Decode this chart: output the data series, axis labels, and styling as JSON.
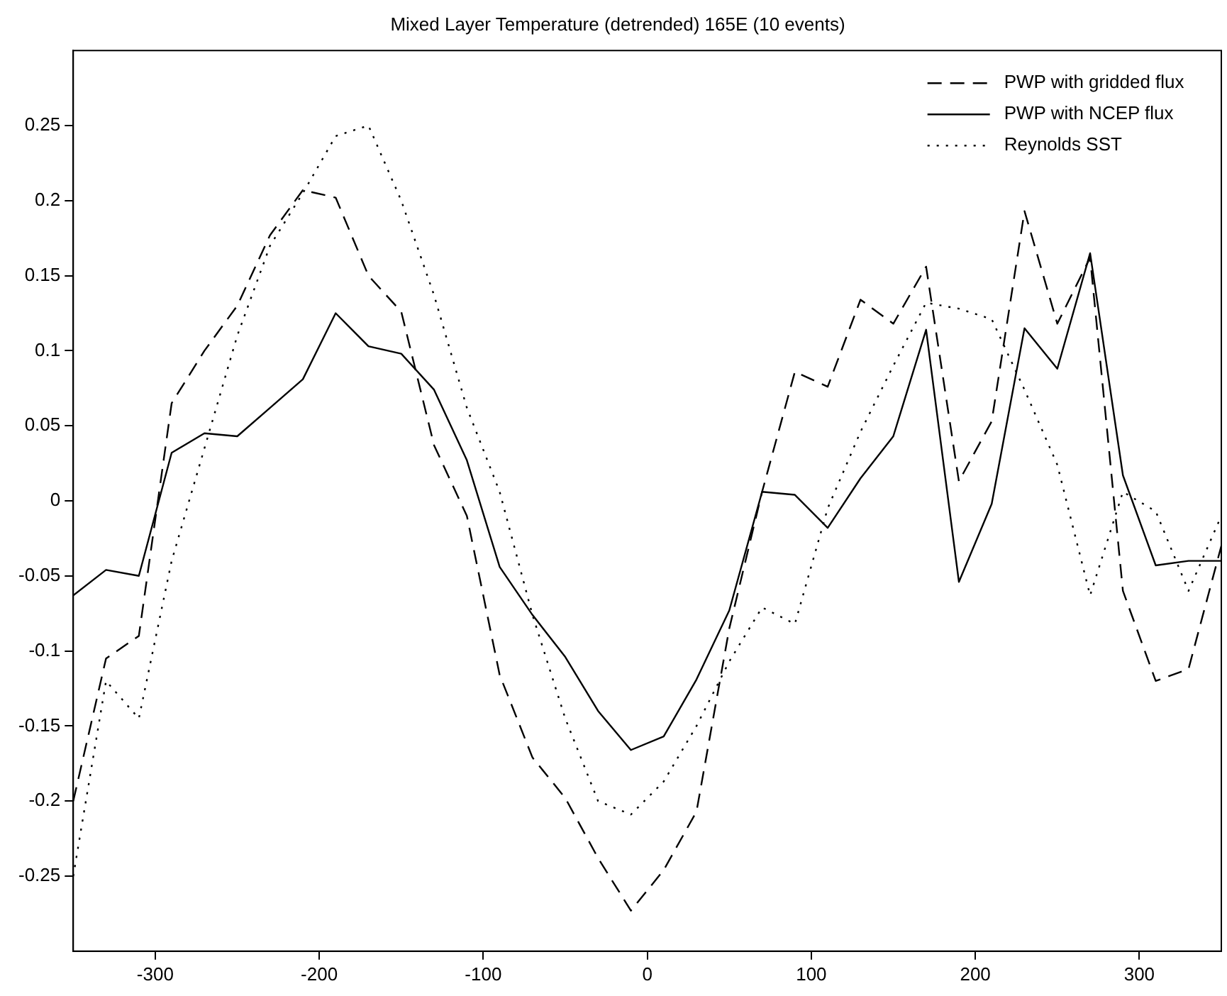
{
  "chart_data": {
    "type": "line",
    "title": "Mixed Layer Temperature (detrended) 165E (10 events)",
    "x": [
      -350,
      -330,
      -310,
      -290,
      -270,
      -250,
      -230,
      -210,
      -190,
      -170,
      -150,
      -130,
      -110,
      -90,
      -70,
      -50,
      -30,
      -10,
      10,
      30,
      50,
      70,
      90,
      110,
      130,
      150,
      170,
      190,
      210,
      230,
      250,
      270,
      290,
      310,
      330,
      350
    ],
    "series": [
      {
        "name": "PWP with gridded flux",
        "color": "#000000",
        "line_style": "dashed",
        "values": [
          -0.2,
          -0.105,
          -0.09,
          0.065,
          0.1,
          0.13,
          0.177,
          0.207,
          0.202,
          0.15,
          0.126,
          0.037,
          -0.01,
          -0.116,
          -0.171,
          -0.198,
          -0.238,
          -0.273,
          -0.246,
          -0.207,
          -0.085,
          0.006,
          0.086,
          0.076,
          0.134,
          0.118,
          0.156,
          0.013,
          0.053,
          0.193,
          0.118,
          0.162,
          -0.06,
          -0.12,
          -0.112,
          -0.03
        ]
      },
      {
        "name": "PWP with NCEP flux",
        "color": "#000000",
        "line_style": "solid",
        "values": [
          -0.063,
          -0.046,
          -0.05,
          0.032,
          0.045,
          0.043,
          0.062,
          0.081,
          0.125,
          0.103,
          0.098,
          0.074,
          0.027,
          -0.044,
          -0.076,
          -0.104,
          -0.14,
          -0.166,
          -0.157,
          -0.119,
          -0.073,
          0.006,
          0.004,
          -0.018,
          0.015,
          0.043,
          0.114,
          -0.054,
          -0.002,
          0.115,
          0.088,
          0.165,
          0.017,
          -0.043,
          -0.04,
          -0.04
        ]
      },
      {
        "name": "Reynolds SST",
        "color": "#000000",
        "line_style": "dotted",
        "values": [
          -0.25,
          -0.12,
          -0.145,
          -0.04,
          0.035,
          0.11,
          0.17,
          0.205,
          0.243,
          0.25,
          0.2,
          0.137,
          0.062,
          0.006,
          -0.076,
          -0.145,
          -0.2,
          -0.209,
          -0.187,
          -0.15,
          -0.107,
          -0.071,
          -0.082,
          -0.005,
          0.046,
          0.09,
          0.132,
          0.128,
          0.121,
          0.074,
          0.024,
          -0.063,
          0.006,
          -0.007,
          -0.06,
          -0.01
        ]
      }
    ],
    "xlim": [
      -350,
      350
    ],
    "ylim": [
      -0.3,
      0.3
    ],
    "xticks": [
      -300,
      -200,
      -100,
      0,
      100,
      200,
      300
    ],
    "yticks": [
      -0.25,
      -0.2,
      -0.15,
      -0.1,
      -0.05,
      0,
      0.05,
      0.1,
      0.15,
      0.2,
      0.25
    ],
    "grid": false,
    "legend": "top right",
    "marker": "none"
  }
}
